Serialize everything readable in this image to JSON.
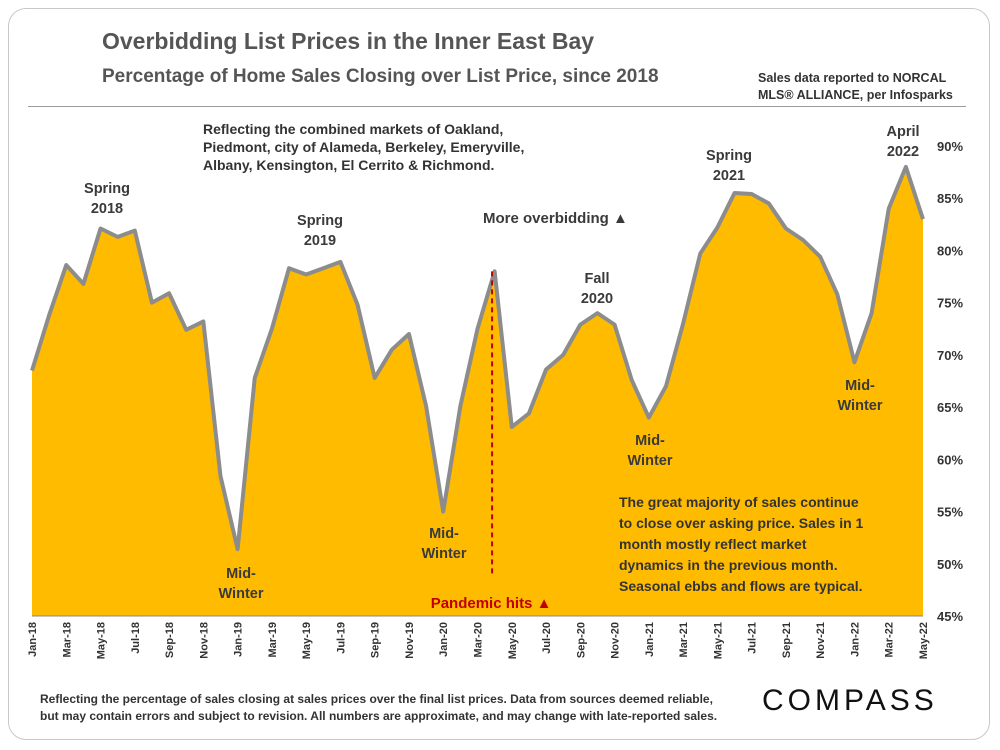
{
  "header": {
    "title": "Overbidding List Prices in the Inner East Bay",
    "subtitle": "Percentage of Home Sales Closing over List Price, since 2018",
    "source_line1": "Sales data reported to NORCAL",
    "source_line2": "MLS® ALLIANCE, per Infosparks"
  },
  "footer": {
    "note_line1": "Reflecting the percentage of sales closing at sales prices over the final list prices. Data from sources deemed reliable,",
    "note_line2": "but may contain errors and subject to revision. All numbers are approximate, and may change with late-reported sales.",
    "brand": "COMPASS"
  },
  "chart_data": {
    "type": "area",
    "title": "Overbidding List Prices in the Inner East Bay",
    "subtitle": "Percentage of Home Sales Closing over List Price, since 2018",
    "ylabel": "",
    "xlabel": "",
    "ylim": [
      45,
      90
    ],
    "yticks": [
      "90%",
      "85%",
      "80%",
      "75%",
      "70%",
      "65%",
      "60%",
      "55%",
      "50%",
      "45%"
    ],
    "ytick_values": [
      90,
      85,
      80,
      75,
      70,
      65,
      60,
      55,
      50,
      45
    ],
    "x_tick_labels": [
      "Jan-18",
      "Mar-18",
      "May-18",
      "Jul-18",
      "Sep-18",
      "Nov-18",
      "Jan-19",
      "Mar-19",
      "May-19",
      "Jul-19",
      "Sep-19",
      "Nov-19",
      "Jan-20",
      "Mar-20",
      "May-20",
      "Jul-20",
      "Sep-20",
      "Nov-20",
      "Jan-21",
      "Mar-21",
      "May-21",
      "Jul-21",
      "Sep-21",
      "Nov-21",
      "Jan-22",
      "Mar-22",
      "May-22"
    ],
    "fill_color": "#FFBB00",
    "line_color": "#8C8C8C",
    "series": [
      {
        "name": "% of sales over list price",
        "months": [
          "Jan-18",
          "Feb-18",
          "Mar-18",
          "Apr-18",
          "May-18",
          "Jun-18",
          "Jul-18",
          "Aug-18",
          "Sep-18",
          "Oct-18",
          "Nov-18",
          "Dec-18",
          "Jan-19",
          "Feb-19",
          "Mar-19",
          "Apr-19",
          "May-19",
          "Jun-19",
          "Jul-19",
          "Aug-19",
          "Sep-19",
          "Oct-19",
          "Nov-19",
          "Dec-19",
          "Jan-20",
          "Feb-20",
          "Mar-20",
          "Apr-20",
          "May-20",
          "Jun-20",
          "Jul-20",
          "Aug-20",
          "Sep-20",
          "Oct-20",
          "Nov-20",
          "Dec-20",
          "Jan-21",
          "Feb-21",
          "Mar-21",
          "Apr-21",
          "May-21",
          "Jun-21",
          "Jul-21",
          "Aug-21",
          "Sep-21",
          "Oct-21",
          "Nov-21",
          "Dec-21",
          "Jan-22",
          "Feb-22",
          "Mar-22",
          "Apr-22",
          "May-22"
        ],
        "values": [
          68.5,
          73.8,
          78.6,
          76.8,
          82.1,
          81.3,
          81.9,
          75.0,
          75.9,
          72.4,
          73.2,
          58.4,
          51.4,
          67.8,
          72.5,
          78.3,
          77.7,
          78.3,
          78.9,
          74.8,
          67.8,
          70.5,
          72.0,
          65.1,
          55.0,
          65.1,
          72.5,
          78.0,
          63.1,
          64.4,
          68.6,
          70.0,
          72.9,
          74.0,
          72.9,
          67.6,
          64.0,
          67.0,
          73.0,
          79.7,
          82.2,
          85.5,
          85.4,
          84.5,
          82.1,
          81.0,
          79.4,
          75.8,
          69.3,
          74.0,
          84.0,
          88.0,
          83.0
        ]
      }
    ],
    "annotations": [
      {
        "label_line1": "Spring",
        "label_line2": "2018",
        "month": "May-18"
      },
      {
        "label_line1": "Mid-",
        "label_line2": "Winter",
        "month": "Jan-19"
      },
      {
        "label_line1": "Spring",
        "label_line2": "2019",
        "month": "Jun-19"
      },
      {
        "label_line1": "Mid-",
        "label_line2": "Winter",
        "month": "Jan-20"
      },
      {
        "label_line1": "Fall",
        "label_line2": "2020",
        "month": "Oct-20"
      },
      {
        "label_line1": "Mid-",
        "label_line2": "Winter",
        "month": "Jan-21"
      },
      {
        "label_line1": "Spring",
        "label_line2": "2021",
        "month": "Jun-21"
      },
      {
        "label_line1": "Mid-",
        "label_line2": "Winter",
        "month": "Jan-22"
      },
      {
        "label_line1": "April",
        "label_line2": "2022",
        "month": "Apr-22"
      }
    ],
    "markets_note": [
      "Reflecting the combined markets of Oakland,",
      "Piedmont, city of Alameda, Berkeley, Emeryville,",
      "Albany, Kensington, El Cerrito & Richmond."
    ],
    "more_overbidding": "More overbidding ▲",
    "pandemic_label": "Pandemic hits ▲",
    "pandemic_month": "Apr-20",
    "pandemic_color": "#C00000",
    "summary_note": [
      "The great majority of sales continue",
      "to close over asking price. Sales in 1",
      "month mostly reflect market",
      "dynamics in the previous month.",
      "Seasonal ebbs and flows are typical."
    ]
  }
}
